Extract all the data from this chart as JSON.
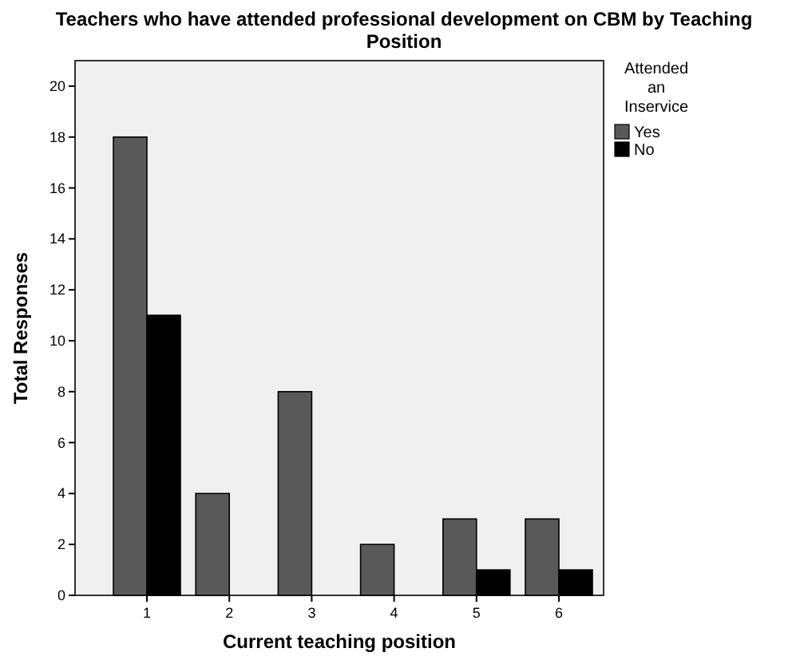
{
  "chart_data": {
    "type": "bar",
    "title": "Teachers who have attended professional development on CBM by Teaching Position",
    "xlabel": "Current teaching position",
    "ylabel": "Total Responses",
    "legend_title": "Attended an Inservice",
    "legend": "right",
    "categories": [
      "1",
      "2",
      "3",
      "4",
      "5",
      "6"
    ],
    "series": [
      {
        "name": "Yes",
        "color": "#595959",
        "values": [
          18,
          4,
          8,
          2,
          3,
          3
        ]
      },
      {
        "name": "No",
        "color": "#000000",
        "values": [
          11,
          0,
          0,
          0,
          1,
          1
        ]
      }
    ],
    "ylim": [
      0,
      21
    ],
    "yticks": [
      0,
      2,
      4,
      6,
      8,
      10,
      12,
      14,
      16,
      18,
      20
    ]
  }
}
